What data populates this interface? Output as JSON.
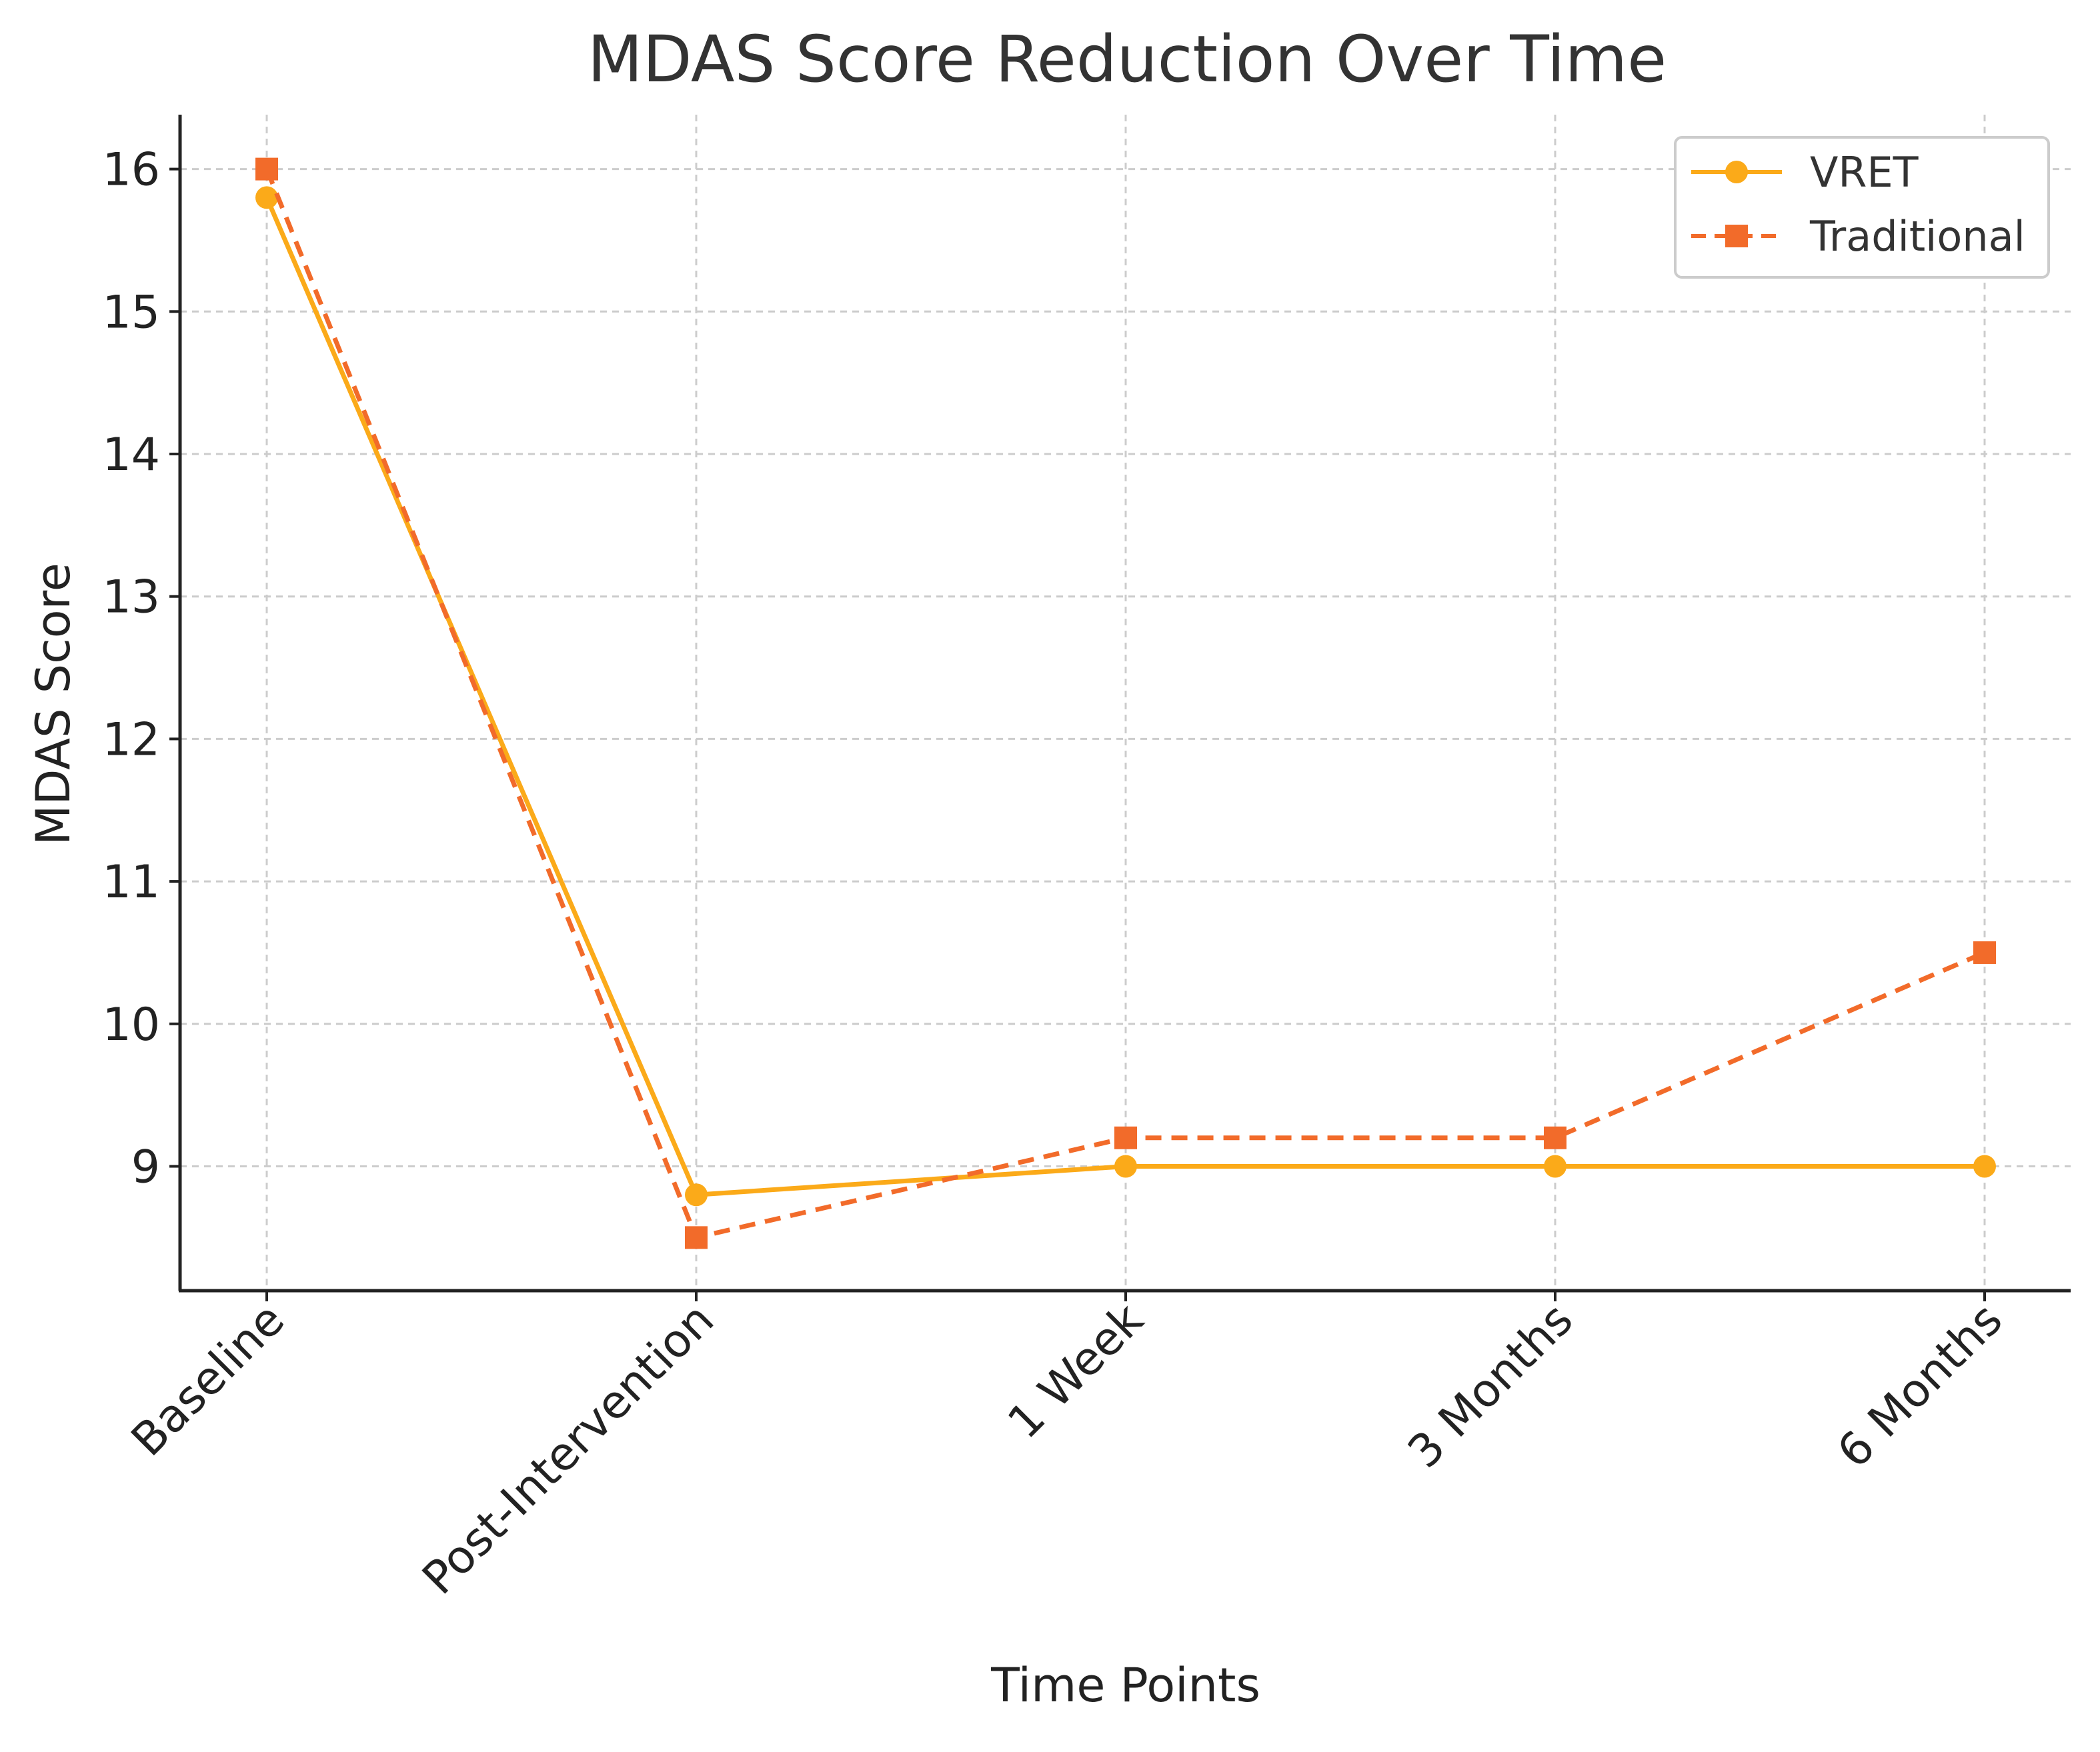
{
  "chart_data": {
    "type": "line",
    "title": "MDAS Score Reduction Over Time",
    "xlabel": "Time Points",
    "ylabel": "MDAS Score",
    "categories": [
      "Baseline",
      "Post-Intervention",
      "1 Week",
      "3 Months",
      "6 Months"
    ],
    "ylim": [
      8.1,
      16.4
    ],
    "yticks": [
      9,
      10,
      11,
      12,
      13,
      14,
      15,
      16
    ],
    "grid": true,
    "legend_position": "top-right",
    "series": [
      {
        "name": "VRET",
        "values": [
          15.8,
          8.8,
          9.0,
          9.0,
          9.0
        ],
        "color": "#FBAA19",
        "line_style": "solid",
        "marker": "circle"
      },
      {
        "name": "Traditional",
        "values": [
          16.0,
          8.5,
          9.2,
          9.2,
          10.5
        ],
        "color": "#F26B2A",
        "line_style": "dashed",
        "marker": "square"
      }
    ]
  }
}
